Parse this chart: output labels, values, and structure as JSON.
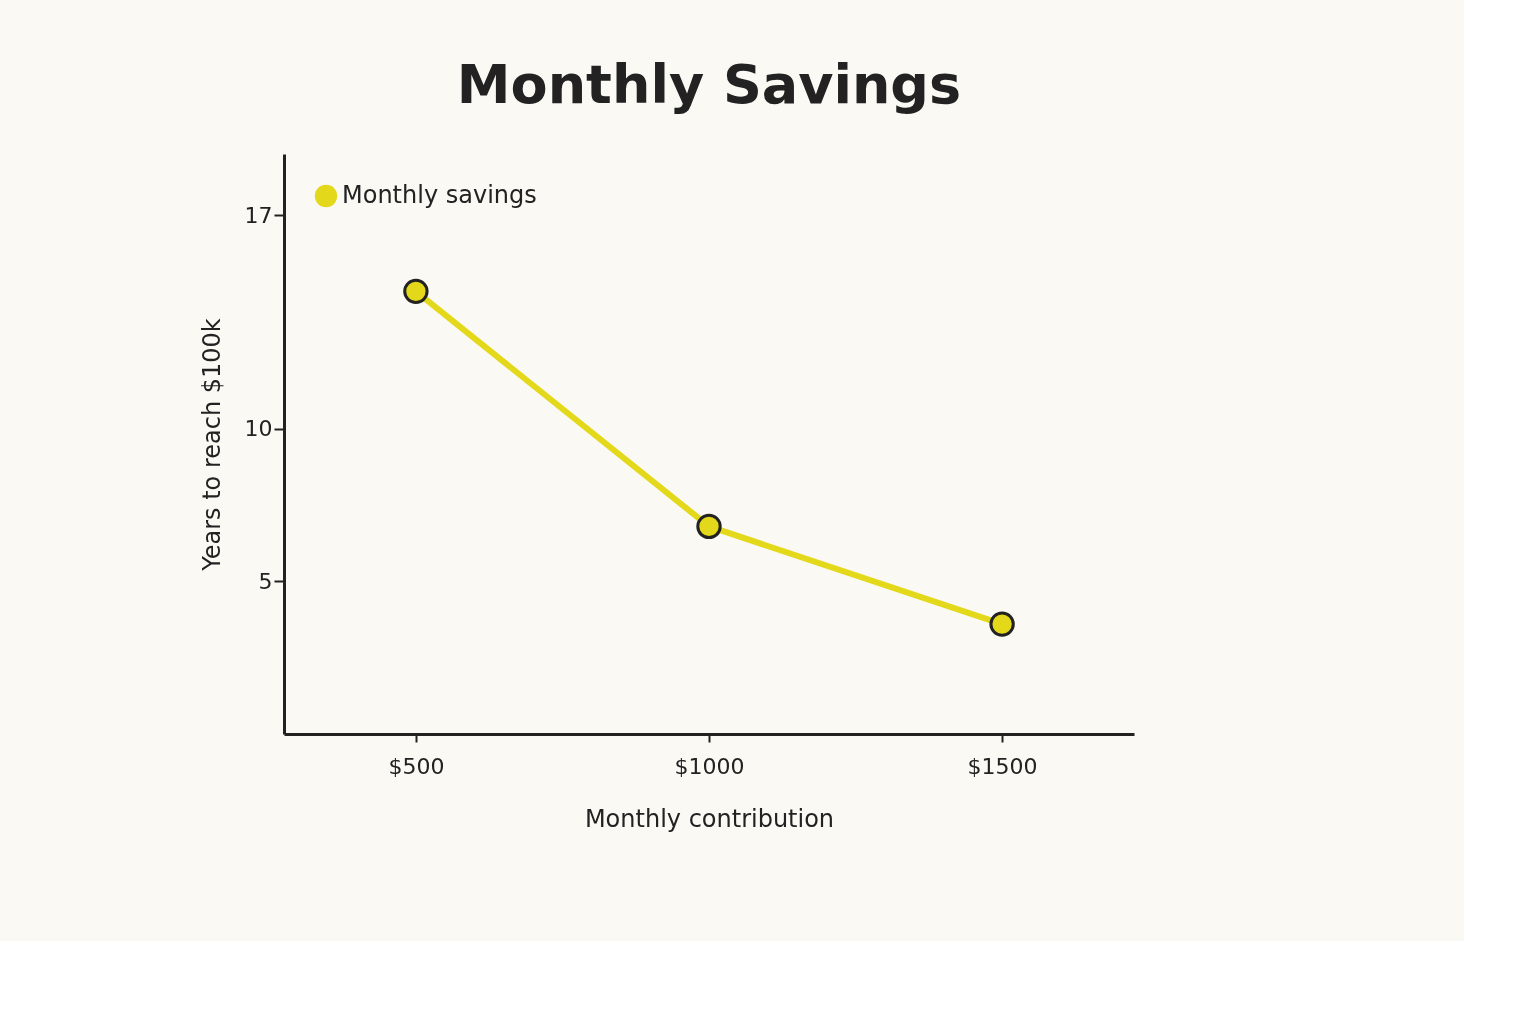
{
  "chart_data": {
    "type": "line",
    "title": "Monthly Savings",
    "xlabel": "Monthly contribution",
    "ylabel": "Years to reach $100k",
    "categories": [
      "$500",
      "$1000",
      "$1500"
    ],
    "series": [
      {
        "name": "Monthly savings",
        "color": "#e3d81a",
        "values": [
          14.5,
          6.8,
          3.6
        ]
      }
    ],
    "ylim": [
      0,
      19
    ],
    "yticks": [
      5,
      10,
      17
    ],
    "grid": false,
    "legend": "top left",
    "marker": "circle",
    "line_style": "solid"
  }
}
